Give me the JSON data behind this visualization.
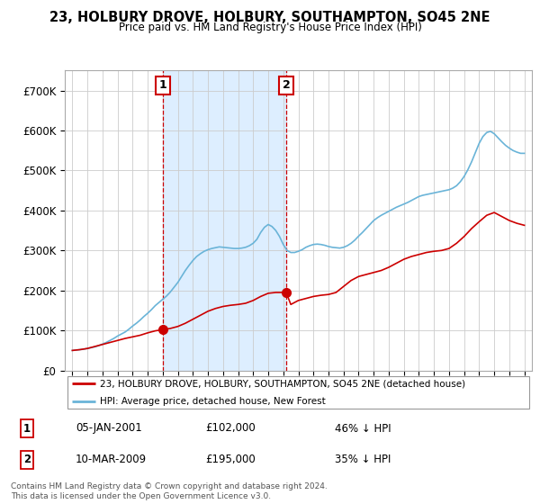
{
  "title": "23, HOLBURY DROVE, HOLBURY, SOUTHAMPTON, SO45 2NE",
  "subtitle": "Price paid vs. HM Land Registry's House Price Index (HPI)",
  "footer": "Contains HM Land Registry data © Crown copyright and database right 2024.\nThis data is licensed under the Open Government Licence v3.0.",
  "legend_line1": "23, HOLBURY DROVE, HOLBURY, SOUTHAMPTON, SO45 2NE (detached house)",
  "legend_line2": "HPI: Average price, detached house, New Forest",
  "sale1_date": "05-JAN-2001",
  "sale1_price": "£102,000",
  "sale1_note": "46% ↓ HPI",
  "sale1_year": 2001.03,
  "sale1_value": 102000,
  "sale2_date": "10-MAR-2009",
  "sale2_price": "£195,000",
  "sale2_note": "35% ↓ HPI",
  "sale2_year": 2009.19,
  "sale2_value": 195000,
  "property_color": "#cc0000",
  "hpi_color": "#6ab4d8",
  "shade_color": "#ddeeff",
  "background_color": "#ffffff",
  "grid_color": "#cccccc",
  "ylim": [
    0,
    750000
  ],
  "yticks": [
    0,
    100000,
    200000,
    300000,
    400000,
    500000,
    600000,
    700000
  ],
  "xmin": 1994.5,
  "xmax": 2025.5,
  "hpi_years": [
    1995,
    1995.25,
    1995.5,
    1995.75,
    1996,
    1996.25,
    1996.5,
    1996.75,
    1997,
    1997.25,
    1997.5,
    1997.75,
    1998,
    1998.25,
    1998.5,
    1998.75,
    1999,
    1999.25,
    1999.5,
    1999.75,
    2000,
    2000.25,
    2000.5,
    2000.75,
    2001,
    2001.25,
    2001.5,
    2001.75,
    2002,
    2002.25,
    2002.5,
    2002.75,
    2003,
    2003.25,
    2003.5,
    2003.75,
    2004,
    2004.25,
    2004.5,
    2004.75,
    2005,
    2005.25,
    2005.5,
    2005.75,
    2006,
    2006.25,
    2006.5,
    2006.75,
    2007,
    2007.25,
    2007.5,
    2007.75,
    2008,
    2008.25,
    2008.5,
    2008.75,
    2009,
    2009.25,
    2009.5,
    2009.75,
    2010,
    2010.25,
    2010.5,
    2010.75,
    2011,
    2011.25,
    2011.5,
    2011.75,
    2012,
    2012.25,
    2012.5,
    2012.75,
    2013,
    2013.25,
    2013.5,
    2013.75,
    2014,
    2014.25,
    2014.5,
    2014.75,
    2015,
    2015.25,
    2015.5,
    2015.75,
    2016,
    2016.25,
    2016.5,
    2016.75,
    2017,
    2017.25,
    2017.5,
    2017.75,
    2018,
    2018.25,
    2018.5,
    2018.75,
    2019,
    2019.25,
    2019.5,
    2019.75,
    2020,
    2020.25,
    2020.5,
    2020.75,
    2021,
    2021.25,
    2021.5,
    2021.75,
    2022,
    2022.25,
    2022.5,
    2022.75,
    2023,
    2023.25,
    2023.5,
    2023.75,
    2024,
    2024.25,
    2024.5,
    2024.75,
    2025
  ],
  "hpi_values": [
    50000,
    51000,
    52000,
    53000,
    55000,
    57000,
    59000,
    62000,
    66000,
    70000,
    75000,
    80000,
    86000,
    91000,
    96000,
    103000,
    111000,
    118000,
    126000,
    135000,
    143000,
    152000,
    162000,
    170000,
    178000,
    186000,
    196000,
    208000,
    220000,
    235000,
    250000,
    263000,
    275000,
    285000,
    292000,
    298000,
    302000,
    305000,
    307000,
    309000,
    308000,
    307000,
    306000,
    305000,
    305000,
    306000,
    308000,
    312000,
    318000,
    328000,
    345000,
    358000,
    365000,
    360000,
    350000,
    335000,
    315000,
    300000,
    295000,
    295000,
    298000,
    302000,
    308000,
    312000,
    315000,
    316000,
    315000,
    313000,
    310000,
    308000,
    307000,
    306000,
    308000,
    312000,
    318000,
    326000,
    336000,
    345000,
    355000,
    365000,
    375000,
    382000,
    388000,
    393000,
    398000,
    403000,
    408000,
    412000,
    416000,
    420000,
    425000,
    430000,
    435000,
    438000,
    440000,
    442000,
    444000,
    446000,
    448000,
    450000,
    452000,
    456000,
    462000,
    472000,
    485000,
    502000,
    522000,
    545000,
    568000,
    585000,
    595000,
    598000,
    592000,
    582000,
    572000,
    563000,
    556000,
    550000,
    546000,
    543000,
    543000
  ],
  "prop_years": [
    1995,
    1995.5,
    1996,
    1996.5,
    1997,
    1997.5,
    1998,
    1998.5,
    1999,
    1999.5,
    2000,
    2000.5,
    2001,
    2001.03,
    2001.5,
    2002,
    2002.5,
    2003,
    2003.5,
    2004,
    2004.5,
    2005,
    2005.5,
    2006,
    2006.5,
    2007,
    2007.5,
    2008,
    2008.5,
    2009,
    2009.19,
    2009.5,
    2010,
    2010.5,
    2011,
    2011.5,
    2012,
    2012.5,
    2013,
    2013.5,
    2014,
    2014.5,
    2015,
    2015.5,
    2016,
    2016.5,
    2017,
    2017.5,
    2018,
    2018.5,
    2019,
    2019.5,
    2020,
    2020.5,
    2021,
    2021.5,
    2022,
    2022.5,
    2023,
    2023.5,
    2024,
    2024.5,
    2025
  ],
  "prop_values": [
    50000,
    52000,
    55000,
    60000,
    65000,
    70000,
    75000,
    80000,
    84000,
    88000,
    94000,
    99000,
    102000,
    102000,
    105000,
    110000,
    118000,
    128000,
    138000,
    148000,
    155000,
    160000,
    163000,
    165000,
    168000,
    175000,
    185000,
    193000,
    195000,
    195000,
    195000,
    165000,
    175000,
    180000,
    185000,
    188000,
    190000,
    195000,
    210000,
    225000,
    235000,
    240000,
    245000,
    250000,
    258000,
    268000,
    278000,
    285000,
    290000,
    295000,
    298000,
    300000,
    305000,
    318000,
    335000,
    355000,
    372000,
    388000,
    395000,
    385000,
    375000,
    368000,
    363000
  ]
}
